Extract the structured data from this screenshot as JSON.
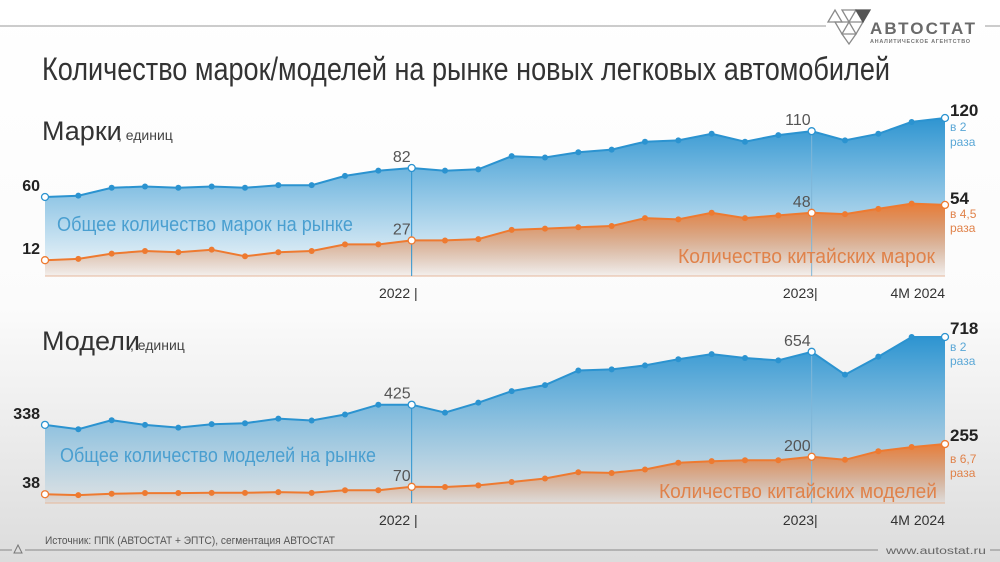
{
  "header": {
    "logo_name": "АВТОСТАТ",
    "logo_tagline": "АНАЛИТИЧЕСКОЕ АГЕНТСТВО",
    "title": "Количество марок/моделей на рынке новых легковых автомобилей"
  },
  "footer": {
    "source": "Источник: ППК (АВТОСТАТ + ЭПТС), сегментация АВТОСТАТ",
    "url": "www.autostat.ru"
  },
  "colors": {
    "blue": "#2b93d0",
    "orange": "#ee7a30",
    "blue_text": "#4a9fd0",
    "orange_text": "#e0824a"
  },
  "chart_data": [
    {
      "type": "area",
      "title": "Марки",
      "unit": ", единиц",
      "x_ticks": [
        {
          "index": 11,
          "label": "2022 |"
        },
        {
          "index": 23,
          "label": "2023|"
        },
        {
          "index": 27,
          "label": "4M 2024"
        }
      ],
      "labeled_points": [
        0,
        11,
        23,
        27
      ],
      "ylim": [
        0,
        125
      ],
      "series": [
        {
          "name": "Общее количество марок на рынке",
          "color": "#2b93d0",
          "values": [
            60,
            61,
            67,
            68,
            67,
            68,
            67,
            69,
            69,
            76,
            80,
            82,
            80,
            81,
            91,
            90,
            94,
            96,
            102,
            103,
            108,
            102,
            107,
            110,
            103,
            108,
            117,
            120
          ],
          "growth_note": [
            "в 2",
            "раза"
          ]
        },
        {
          "name": "Количество китайских марок",
          "color": "#ee7a30",
          "values": [
            12,
            13,
            17,
            19,
            18,
            20,
            15,
            18,
            19,
            24,
            24,
            27,
            27,
            28,
            35,
            36,
            37,
            38,
            44,
            43,
            48,
            44,
            46,
            48,
            47,
            51,
            55,
            54
          ],
          "growth_note": [
            "в 4,5",
            "раза"
          ]
        }
      ]
    },
    {
      "type": "area",
      "title": "Модели",
      "unit": ", единиц",
      "x_ticks": [
        {
          "index": 11,
          "label": "2022 |"
        },
        {
          "index": 23,
          "label": "2023|"
        },
        {
          "index": 27,
          "label": "4M 2024"
        }
      ],
      "labeled_points": [
        0,
        11,
        23,
        27
      ],
      "ylim": [
        0,
        740
      ],
      "series": [
        {
          "name": "Общее количество моделей на рынке",
          "color": "#2b93d0",
          "values": [
            338,
            319,
            358,
            338,
            326,
            341,
            345,
            365,
            357,
            383,
            425,
            425,
            391,
            434,
            484,
            510,
            573,
            578,
            595,
            622,
            644,
            627,
            617,
            654,
            555,
            633,
            718,
            718
          ],
          "growth_note": [
            "в 2",
            "раза"
          ]
        },
        {
          "name": "Количество китайских моделей",
          "color": "#ee7a30",
          "values": [
            38,
            34,
            40,
            43,
            43,
            44,
            44,
            47,
            44,
            55,
            55,
            70,
            69,
            76,
            91,
            106,
            133,
            130,
            145,
            174,
            181,
            185,
            185,
            200,
            187,
            224,
            242,
            255
          ],
          "growth_note": [
            "в 6,7",
            "раза"
          ]
        }
      ]
    }
  ]
}
